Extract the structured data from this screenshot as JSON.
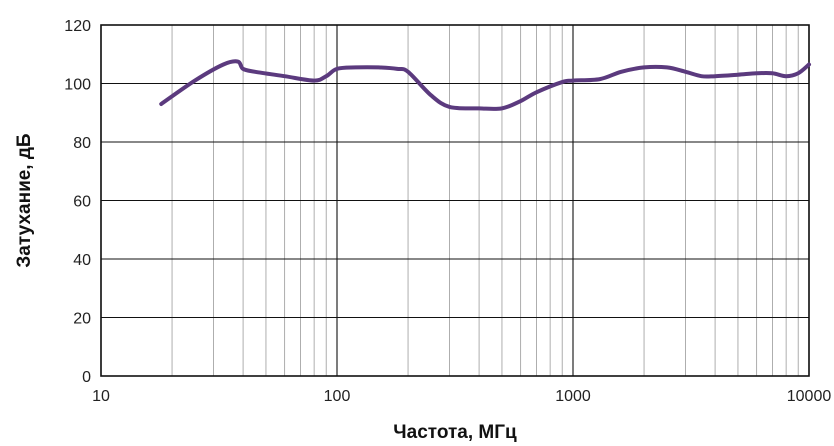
{
  "chart_data": {
    "type": "line",
    "title": "",
    "xlabel": "Частота, МГц",
    "ylabel": "Затухание, дБ",
    "x_scale": "log",
    "xlim": [
      10,
      10000
    ],
    "ylim": [
      0,
      120
    ],
    "x_ticks": [
      10,
      100,
      1000,
      10000
    ],
    "x_tick_labels": [
      "10",
      "100",
      "1000",
      "10000"
    ],
    "y_ticks": [
      0,
      20,
      40,
      60,
      80,
      100,
      120
    ],
    "y_tick_labels": [
      "0",
      "20",
      "40",
      "60",
      "80",
      "100",
      "120"
    ],
    "grid": true,
    "legend": "none",
    "series": [
      {
        "color": "#5b3a7e",
        "points": [
          [
            18,
            93
          ],
          [
            25,
            101
          ],
          [
            33,
            106.5
          ],
          [
            38,
            107.5
          ],
          [
            40,
            105
          ],
          [
            45,
            104
          ],
          [
            60,
            102.5
          ],
          [
            80,
            101
          ],
          [
            90,
            102.5
          ],
          [
            100,
            105
          ],
          [
            120,
            105.5
          ],
          [
            150,
            105.5
          ],
          [
            180,
            105
          ],
          [
            200,
            104
          ],
          [
            250,
            96
          ],
          [
            300,
            92
          ],
          [
            400,
            91.5
          ],
          [
            500,
            91.5
          ],
          [
            600,
            94
          ],
          [
            700,
            97
          ],
          [
            900,
            100.5
          ],
          [
            1000,
            101
          ],
          [
            1300,
            101.5
          ],
          [
            1600,
            104
          ],
          [
            2000,
            105.5
          ],
          [
            2500,
            105.5
          ],
          [
            3000,
            104
          ],
          [
            3500,
            102.5
          ],
          [
            4000,
            102.5
          ],
          [
            5000,
            103
          ],
          [
            6000,
            103.5
          ],
          [
            7000,
            103.5
          ],
          [
            8000,
            102.5
          ],
          [
            9000,
            103.5
          ],
          [
            10000,
            106.5
          ]
        ]
      }
    ]
  }
}
